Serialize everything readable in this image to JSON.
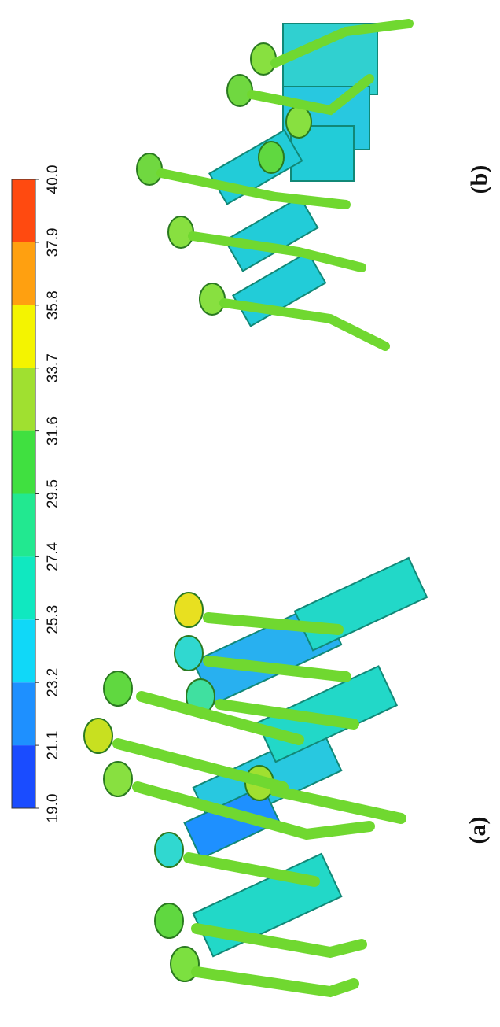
{
  "colorbar": {
    "ticks": [
      {
        "value": 19.0,
        "label": "19.0"
      },
      {
        "value": 21.1,
        "label": "21.1"
      },
      {
        "value": 23.2,
        "label": "23.2"
      },
      {
        "value": 25.3,
        "label": "25.3"
      },
      {
        "value": 27.4,
        "label": "27.4"
      },
      {
        "value": 29.5,
        "label": "29.5"
      },
      {
        "value": 31.6,
        "label": "31.6"
      },
      {
        "value": 33.7,
        "label": "33.7"
      },
      {
        "value": 35.8,
        "label": "35.8"
      },
      {
        "value": 37.9,
        "label": "37.9"
      },
      {
        "value": 40.0,
        "label": "40.0"
      }
    ],
    "colors": [
      "#1a4cff",
      "#1e90ff",
      "#10d8f8",
      "#10e8c0",
      "#22e890",
      "#40e040",
      "#a0e030",
      "#f4f400",
      "#ffa010",
      "#ff4a10"
    ]
  },
  "panels": [
    {
      "label": "(a)"
    },
    {
      "label": "(b)"
    }
  ]
}
